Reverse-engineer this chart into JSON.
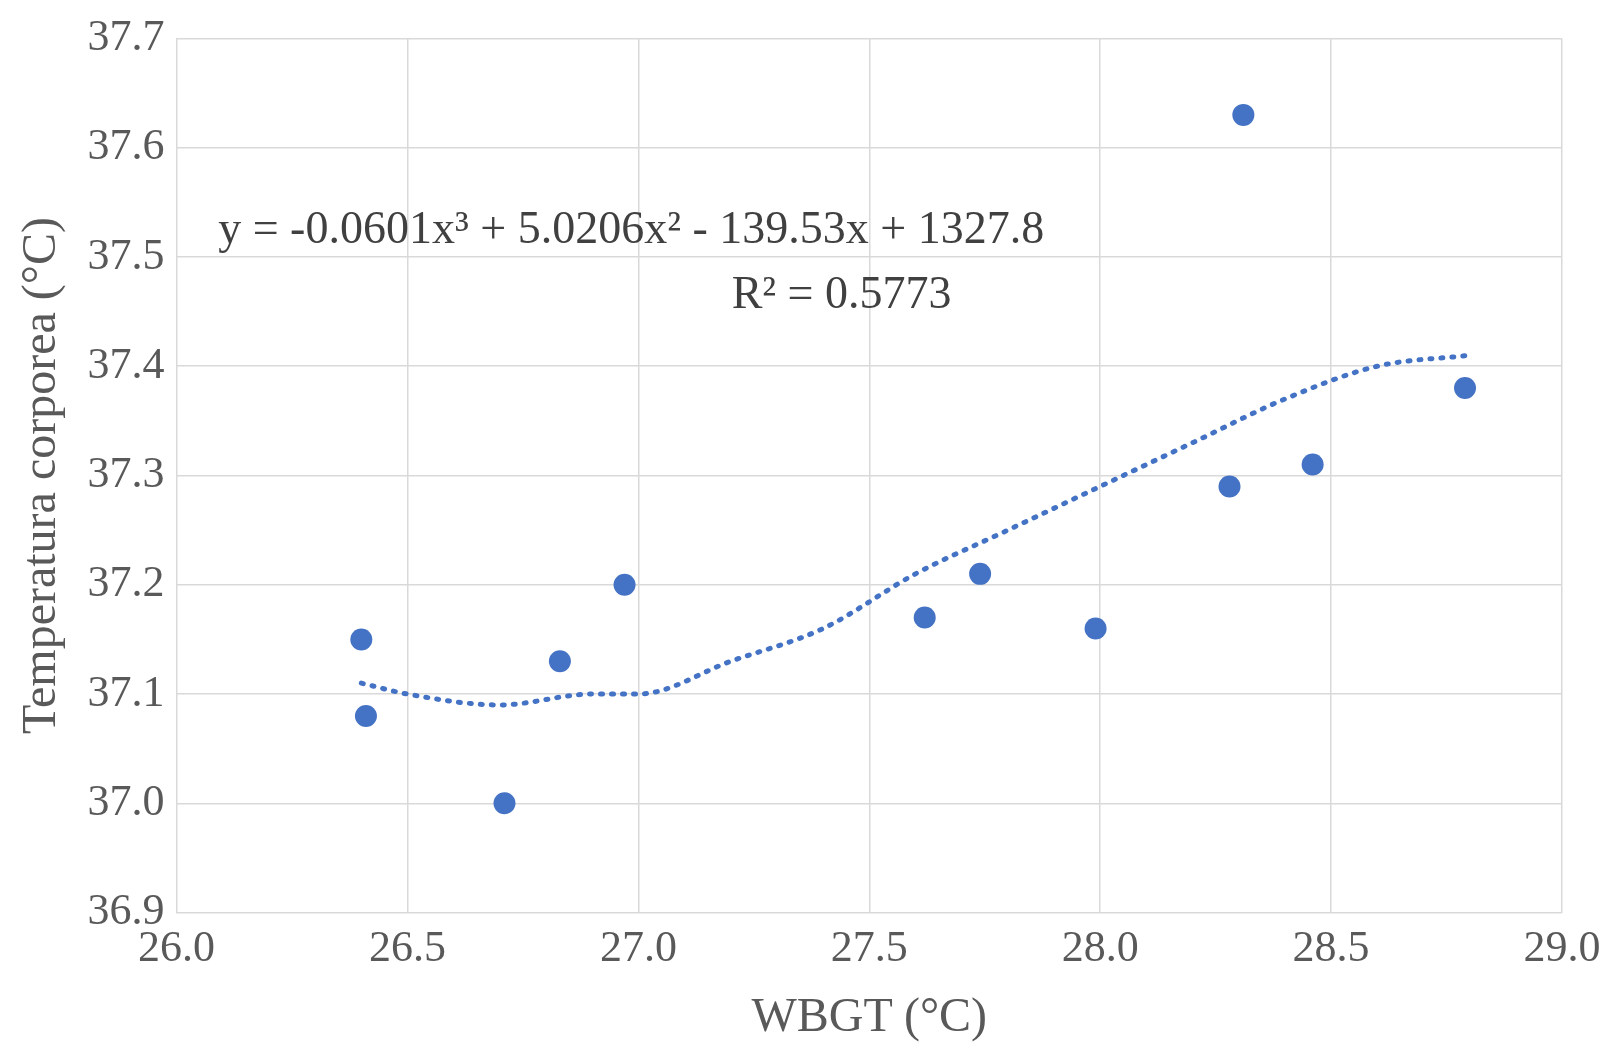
{
  "chart_data": {
    "type": "scatter",
    "xlabel": "WBGT (°C)",
    "ylabel": "Temperatura corporea (°C)",
    "annotations": [
      "y = -0.0601x³ + 5.0206x² - 139.53x + 1327.8",
      "R² = 0.5773"
    ],
    "x": [
      26.4,
      26.41,
      26.71,
      26.83,
      26.97,
      27.62,
      27.74,
      27.99,
      28.28,
      28.31,
      28.46,
      28.79
    ],
    "series": [
      {
        "color": "#4472c4",
        "marker": "circle",
        "values": [
          37.15,
          37.08,
          37.0,
          37.13,
          37.2,
          37.17,
          37.21,
          37.16,
          37.29,
          37.63,
          37.31,
          37.38
        ]
      },
      {
        "type": "line",
        "color": "#4472c4",
        "line_style": "dotted",
        "marker": "none",
        "x": [
          26.4,
          26.5,
          26.7,
          26.9,
          27.0,
          27.2,
          27.4,
          27.6,
          27.8,
          28.0,
          28.2,
          28.4,
          28.6,
          28.8
        ],
        "values": [
          37.11,
          37.1,
          37.09,
          37.1,
          37.1,
          37.13,
          37.16,
          37.21,
          37.25,
          37.29,
          37.33,
          37.37,
          37.4,
          37.41
        ]
      }
    ],
    "xlim": [
      26.0,
      29.0
    ],
    "xticks": [
      {
        "value": 26.0,
        "label": "26.0"
      },
      26.5,
      {
        "value": 27.0,
        "label": "27.0"
      },
      27.5,
      {
        "value": 28.0,
        "label": "28.0"
      },
      28.5,
      {
        "value": 29.0,
        "label": "29.0"
      }
    ],
    "ylim": [
      36.9,
      37.7
    ],
    "yticks": [
      36.9,
      {
        "value": 37.0,
        "label": "37.0"
      },
      37.1,
      37.2,
      37.3,
      37.4,
      37.5,
      37.6,
      37.7
    ],
    "grid": true,
    "legend": false
  }
}
